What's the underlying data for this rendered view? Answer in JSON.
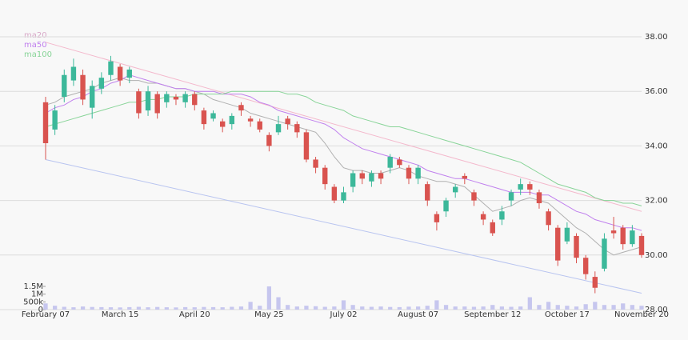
{
  "chart_data": {
    "type": "candlestick",
    "categories": [
      "February 07",
      null,
      null,
      null,
      null,
      null,
      null,
      null,
      "March 15",
      null,
      null,
      null,
      null,
      null,
      null,
      null,
      "April 20",
      null,
      null,
      null,
      null,
      null,
      null,
      null,
      "May 25",
      null,
      null,
      null,
      null,
      null,
      null,
      null,
      "July 02",
      null,
      null,
      null,
      null,
      null,
      null,
      null,
      "August 07",
      null,
      null,
      null,
      null,
      null,
      null,
      null,
      "September 12",
      null,
      null,
      null,
      null,
      null,
      null,
      null,
      "October 17",
      null,
      null,
      null,
      null,
      null,
      null,
      null,
      "November 20"
    ],
    "open": [
      35.6,
      34.6,
      35.8,
      36.4,
      36.6,
      35.4,
      36.1,
      36.6,
      36.9,
      36.5,
      36.0,
      35.3,
      35.9,
      35.6,
      35.8,
      35.6,
      35.9,
      35.3,
      35.0,
      34.9,
      34.8,
      35.5,
      35.0,
      34.9,
      34.4,
      34.5,
      35.0,
      34.8,
      34.5,
      33.5,
      33.2,
      32.5,
      32.0,
      32.5,
      33.0,
      32.7,
      33.0,
      33.2,
      33.5,
      33.2,
      32.8,
      32.6,
      31.5,
      31.6,
      32.3,
      32.9,
      32.3,
      31.5,
      31.2,
      31.3,
      32.0,
      32.4,
      32.6,
      32.3,
      31.6,
      31.0,
      30.5,
      30.7,
      29.9,
      29.2,
      29.5,
      30.9,
      31.0,
      30.4,
      30.7
    ],
    "high": [
      35.8,
      35.5,
      36.8,
      37.2,
      36.8,
      36.4,
      36.7,
      37.3,
      37.0,
      36.9,
      36.1,
      36.2,
      36.0,
      36.0,
      35.9,
      36.0,
      36.0,
      35.4,
      35.3,
      35.0,
      35.2,
      35.6,
      35.1,
      35.0,
      34.5,
      35.1,
      35.1,
      34.9,
      34.6,
      33.6,
      33.3,
      32.6,
      32.5,
      33.1,
      33.1,
      33.1,
      33.1,
      33.7,
      33.6,
      33.3,
      33.3,
      32.7,
      31.6,
      32.1,
      32.6,
      33.0,
      32.4,
      31.6,
      31.3,
      31.8,
      32.4,
      32.8,
      32.7,
      32.4,
      31.7,
      31.1,
      31.2,
      30.8,
      30.0,
      29.4,
      30.8,
      31.4,
      31.1,
      31.1,
      30.8
    ],
    "low": [
      33.5,
      34.4,
      35.6,
      36.2,
      35.5,
      35.0,
      35.9,
      36.4,
      36.2,
      36.3,
      35.0,
      35.1,
      35.0,
      35.4,
      35.5,
      35.4,
      35.3,
      34.6,
      34.9,
      34.5,
      34.6,
      35.1,
      34.7,
      34.5,
      33.8,
      34.4,
      34.6,
      34.3,
      33.4,
      33.0,
      32.4,
      31.9,
      31.9,
      32.3,
      32.6,
      32.5,
      32.6,
      33.0,
      33.2,
      32.6,
      32.6,
      31.8,
      30.9,
      31.4,
      32.1,
      32.6,
      31.8,
      31.1,
      30.7,
      31.1,
      31.8,
      32.2,
      32.2,
      31.7,
      30.9,
      29.6,
      30.4,
      29.7,
      29.1,
      28.6,
      29.4,
      30.6,
      30.2,
      30.3,
      29.9
    ],
    "close": [
      34.1,
      35.3,
      36.6,
      36.9,
      35.7,
      36.2,
      36.5,
      37.1,
      36.4,
      36.8,
      35.2,
      36.0,
      35.2,
      35.9,
      35.7,
      35.9,
      35.5,
      34.8,
      35.2,
      34.7,
      35.1,
      35.3,
      34.9,
      34.6,
      34.0,
      34.8,
      34.8,
      34.5,
      33.5,
      33.2,
      32.6,
      32.0,
      32.3,
      33.0,
      32.8,
      33.0,
      32.8,
      33.6,
      33.3,
      32.8,
      33.2,
      32.0,
      31.2,
      32.0,
      32.5,
      32.8,
      32.0,
      31.3,
      30.8,
      31.6,
      32.3,
      32.6,
      32.4,
      31.9,
      31.1,
      29.8,
      31.0,
      29.9,
      29.3,
      28.8,
      30.6,
      30.8,
      30.4,
      30.9,
      30.0
    ],
    "volume": [
      400000,
      250000,
      180000,
      150000,
      200000,
      170000,
      160000,
      150000,
      140000,
      160000,
      180000,
      150000,
      170000,
      150000,
      140000,
      160000,
      150000,
      170000,
      160000,
      150000,
      180000,
      200000,
      500000,
      250000,
      1500000,
      800000,
      300000,
      200000,
      250000,
      220000,
      180000,
      200000,
      600000,
      300000,
      200000,
      180000,
      200000,
      170000,
      160000,
      190000,
      200000,
      250000,
      600000,
      300000,
      200000,
      200000,
      180000,
      200000,
      300000,
      200000,
      180000,
      200000,
      800000,
      300000,
      500000,
      300000,
      250000,
      200000,
      350000,
      500000,
      300000,
      300000,
      400000,
      300000,
      250000
    ],
    "up_color": "#3cb89a",
    "down_color": "#d9534f",
    "volume_color": "#c6c6ee",
    "series": [
      {
        "name": "ma20",
        "color": "#b0b0b0",
        "label_color": "#d8a8c8",
        "values": [
          35.5,
          35.6,
          35.8,
          35.9,
          36.0,
          36.1,
          36.3,
          36.4,
          36.5,
          36.4,
          36.4,
          36.3,
          36.3,
          36.2,
          36.1,
          36.1,
          36.0,
          35.9,
          35.7,
          35.6,
          35.5,
          35.4,
          35.2,
          35.1,
          35.0,
          34.9,
          34.8,
          34.7,
          34.6,
          34.5,
          34.1,
          33.6,
          33.2,
          33.1,
          33.1,
          33.0,
          33.0,
          33.1,
          33.2,
          33.1,
          32.9,
          32.8,
          32.7,
          32.7,
          32.6,
          32.5,
          32.2,
          31.9,
          31.6,
          31.7,
          31.8,
          32.0,
          32.1,
          32.0,
          31.9,
          31.6,
          31.3,
          31.0,
          30.8,
          30.5,
          30.2,
          30.0,
          30.1,
          30.2,
          30.3
        ]
      },
      {
        "name": "ma50",
        "color": "#c080ee",
        "label_color": "#c080ee",
        "values": [
          35.2,
          35.4,
          35.5,
          35.7,
          35.8,
          36.0,
          36.1,
          36.3,
          36.4,
          36.6,
          36.5,
          36.4,
          36.3,
          36.2,
          36.1,
          36.1,
          36.0,
          36.0,
          36.0,
          35.9,
          35.9,
          35.9,
          35.8,
          35.6,
          35.5,
          35.3,
          35.2,
          35.1,
          35.0,
          34.9,
          34.8,
          34.6,
          34.3,
          34.1,
          33.9,
          33.8,
          33.7,
          33.6,
          33.5,
          33.4,
          33.3,
          33.1,
          33.0,
          32.9,
          32.8,
          32.8,
          32.7,
          32.6,
          32.5,
          32.4,
          32.3,
          32.3,
          32.3,
          32.2,
          32.2,
          32.0,
          31.8,
          31.6,
          31.5,
          31.3,
          31.2,
          31.1,
          31.0,
          31.0,
          30.9
        ]
      },
      {
        "name": "ma100",
        "color": "#88d498",
        "label_color": "#88d498",
        "values": [
          34.7,
          34.8,
          34.9,
          35.0,
          35.1,
          35.2,
          35.3,
          35.4,
          35.5,
          35.6,
          35.6,
          35.7,
          35.7,
          35.8,
          35.8,
          35.8,
          35.9,
          35.9,
          35.9,
          35.9,
          36.0,
          36.0,
          36.0,
          36.0,
          36.0,
          36.0,
          35.9,
          35.9,
          35.8,
          35.6,
          35.5,
          35.4,
          35.3,
          35.1,
          35.0,
          34.9,
          34.8,
          34.7,
          34.7,
          34.6,
          34.5,
          34.4,
          34.3,
          34.2,
          34.1,
          34.0,
          33.9,
          33.8,
          33.7,
          33.6,
          33.5,
          33.4,
          33.2,
          33.0,
          32.8,
          32.6,
          32.5,
          32.4,
          32.3,
          32.1,
          32.0,
          32.0,
          31.9,
          31.9,
          31.8
        ]
      }
    ],
    "trend_lines": [
      {
        "color": "#f4b8cc",
        "values": [
          37.8,
          31.6
        ]
      },
      {
        "color": "#b8c4f0",
        "values": [
          33.5,
          28.6
        ]
      }
    ],
    "ylim": [
      28,
      38
    ],
    "yticks": [
      {
        "value": 28,
        "label": "28.00"
      },
      {
        "value": 30,
        "label": "30.00"
      },
      {
        "value": 32,
        "label": "32.00"
      },
      {
        "value": 34,
        "label": "34.00"
      },
      {
        "value": 36,
        "label": "36.00"
      },
      {
        "value": 38,
        "label": "38.00"
      }
    ],
    "volume_lim": [
      0,
      1500000
    ],
    "volume_ticks": [
      0,
      {
        "value": 500000,
        "label": "500k"
      },
      {
        "value": 1000000,
        "label": "1M"
      },
      {
        "value": 1500000,
        "label": "1.5M"
      }
    ],
    "grid": true
  }
}
